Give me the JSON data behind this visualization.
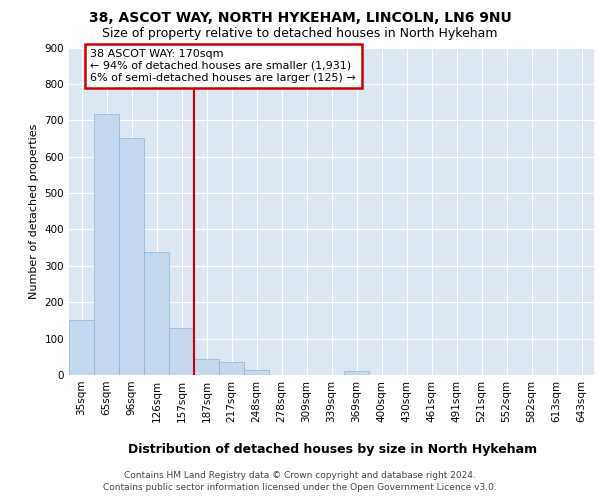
{
  "title1": "38, ASCOT WAY, NORTH HYKEHAM, LINCOLN, LN6 9NU",
  "title2": "Size of property relative to detached houses in North Hykeham",
  "xlabel": "Distribution of detached houses by size in North Hykeham",
  "ylabel": "Number of detached properties",
  "footer1": "Contains HM Land Registry data © Crown copyright and database right 2024.",
  "footer2": "Contains public sector information licensed under the Open Government Licence v3.0.",
  "categories": [
    "35sqm",
    "65sqm",
    "96sqm",
    "126sqm",
    "157sqm",
    "187sqm",
    "217sqm",
    "248sqm",
    "278sqm",
    "309sqm",
    "339sqm",
    "369sqm",
    "400sqm",
    "430sqm",
    "461sqm",
    "491sqm",
    "521sqm",
    "552sqm",
    "582sqm",
    "613sqm",
    "643sqm"
  ],
  "values": [
    150,
    718,
    650,
    338,
    130,
    43,
    35,
    14,
    0,
    0,
    0,
    10,
    0,
    0,
    0,
    0,
    0,
    0,
    0,
    0,
    0
  ],
  "bar_color": "#c5d9ee",
  "bar_edge_color": "#8ab4d8",
  "vline_x": 4.5,
  "vline_color": "#cc0000",
  "ann_line1": "38 ASCOT WAY: 170sqm",
  "ann_line2": "← 94% of detached houses are smaller (1,931)",
  "ann_line3": "6% of semi-detached houses are larger (125) →",
  "ann_box_fc": "#ffffff",
  "ann_box_ec": "#cc0000",
  "ylim_max": 900,
  "yticks": [
    0,
    100,
    200,
    300,
    400,
    500,
    600,
    700,
    800,
    900
  ],
  "bg_color": "#dce7f3",
  "grid_color": "#ffffff",
  "title1_fs": 10,
  "title2_fs": 9,
  "ylabel_fs": 8,
  "xlabel_fs": 9,
  "tick_fs": 7.5,
  "ann_fs": 8,
  "footer_fs": 6.5
}
